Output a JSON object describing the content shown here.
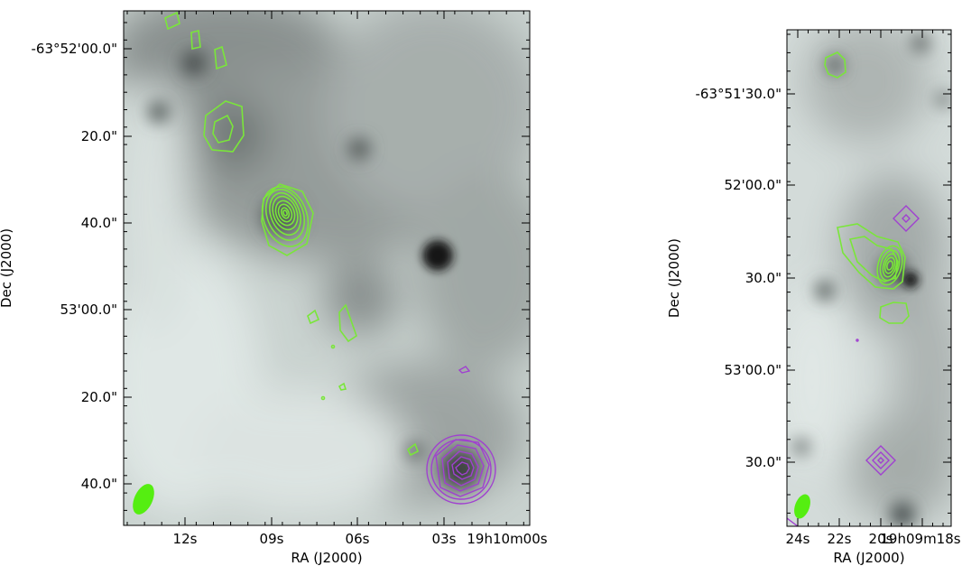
{
  "colors": {
    "background": "#ffffff",
    "image_light": "#dbe3e1",
    "image_dark": "#1a1a1a",
    "green_contours": "#7ae63a",
    "purple_contours": "#a040d0",
    "beam": "#55ee11"
  },
  "panels": [
    {
      "name": "left",
      "xlabel": "RA (J2000)",
      "ylabel": "Dec (J2000)",
      "xticks": [
        "12s",
        "09s",
        "06s",
        "03s",
        "19h10m00s"
      ],
      "yticks": [
        "-63°52'00.0\"",
        "20.0\"",
        "40.0\"",
        "53'00.0\"",
        "20.0\"",
        "40.0\""
      ]
    },
    {
      "name": "right",
      "xlabel": "RA (J2000)",
      "ylabel": "Dec (J2000)",
      "xticks": [
        "24s",
        "22s",
        "20s",
        "19h09m18s"
      ],
      "yticks": [
        "-63°51'30.0\"",
        "52'00.0\"",
        "30.0\"",
        "53'00.0\"",
        "30.0\""
      ]
    }
  ]
}
